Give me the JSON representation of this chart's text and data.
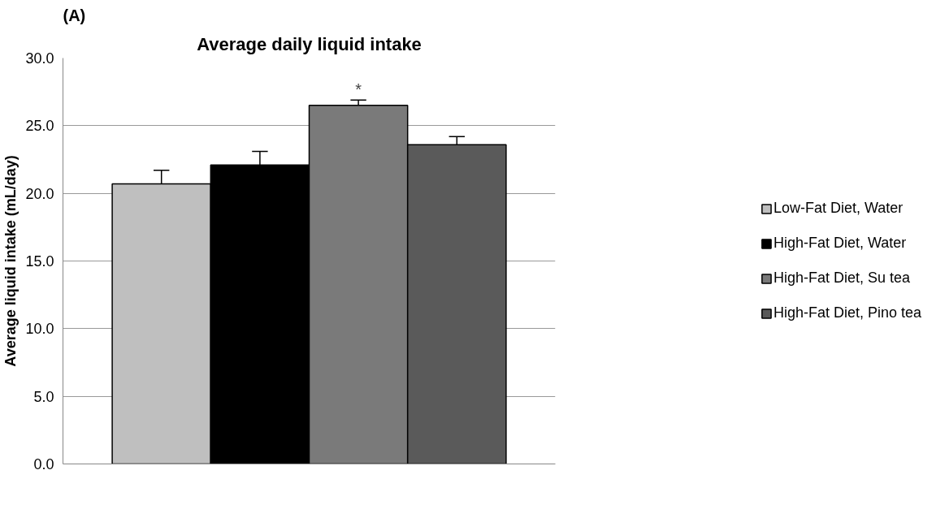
{
  "chart_data": {
    "type": "bar",
    "title": "Average daily liquid intake",
    "ylabel": "Average liquid intake (mL/day)",
    "categories": [
      null
    ],
    "series": [
      {
        "name": "Low-Fat Diet, Water",
        "color": "#bfbfbf",
        "values": [
          20.7
        ],
        "errors": [
          [
            20.7,
            21.7
          ]
        ]
      },
      {
        "name": "High-Fat Diet, Water",
        "color": "#000000",
        "values": [
          22.1
        ],
        "errors": [
          [
            22.1,
            23.1
          ]
        ]
      },
      {
        "name": "High-Fat Diet, Su tea",
        "color": "#7a7a7a",
        "values": [
          26.5
        ],
        "errors": [
          [
            26.5,
            26.9
          ]
        ]
      },
      {
        "name": "High-Fat Diet, Pino tea",
        "color": "#5a5a5a",
        "values": [
          23.6
        ],
        "errors": [
          [
            23.6,
            24.2
          ]
        ]
      }
    ],
    "annotations": [
      "(A)",
      {
        "text": "*",
        "y": 26.9
      }
    ],
    "ylim": [
      0,
      30
    ],
    "yticks": [
      {
        "value": 0,
        "label": "0.0"
      },
      {
        "value": 5,
        "label": "5.0"
      },
      {
        "value": 10,
        "label": "10.0"
      },
      {
        "value": 15,
        "label": "15.0"
      },
      {
        "value": 20,
        "label": "20.0"
      },
      {
        "value": 25,
        "label": "25.0"
      },
      {
        "value": 30,
        "label": "30.0"
      }
    ],
    "grid": "y",
    "legend": "right",
    "tick_labels": "y"
  }
}
